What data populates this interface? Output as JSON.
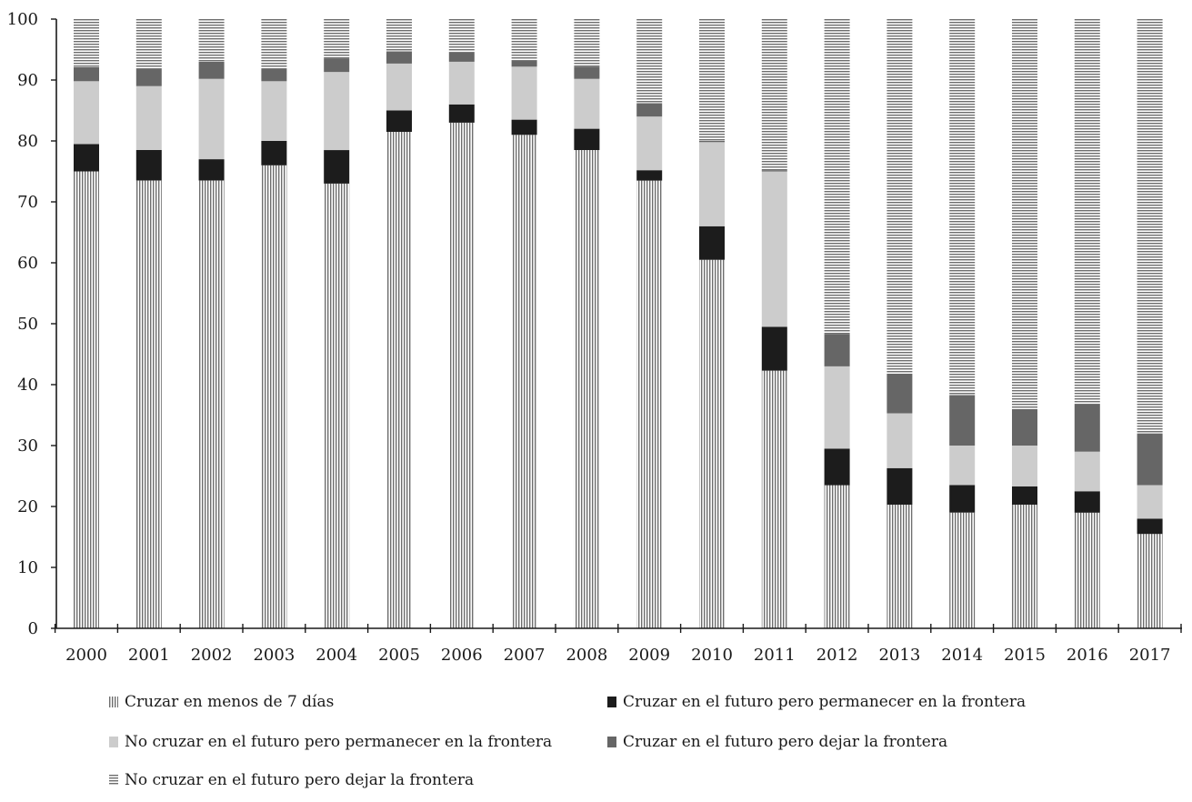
{
  "chart_data": {
    "type": "bar",
    "stacked": true,
    "title": "",
    "xlabel": "",
    "ylabel": "",
    "ylim": [
      0,
      100
    ],
    "yticks": [
      0,
      10,
      20,
      30,
      40,
      50,
      60,
      70,
      80,
      90,
      100
    ],
    "categories": [
      "2000",
      "2001",
      "2002",
      "2003",
      "2004",
      "2005",
      "2006",
      "2007",
      "2008",
      "2009",
      "2010",
      "2011",
      "2012",
      "2013",
      "2014",
      "2015",
      "2016",
      "2017"
    ],
    "series": [
      {
        "name": "Cruzar en menos de 7 días",
        "pattern": "vertical-lines",
        "color": "#6e6e6e",
        "values": [
          75,
          73.5,
          73.5,
          76,
          73,
          81.5,
          83,
          81,
          78.5,
          73.5,
          60.5,
          42.3,
          23.5,
          20.3,
          19,
          20.3,
          19,
          15.5
        ]
      },
      {
        "name": "Cruzar en el futuro pero permanecer en la frontera",
        "pattern": "solid",
        "color": "#1c1c1c",
        "values": [
          4.5,
          5,
          3.5,
          4,
          5.5,
          3.5,
          3,
          2.5,
          3.5,
          1.7,
          5.5,
          7.2,
          6,
          6,
          4.5,
          3,
          3.5,
          2.5
        ]
      },
      {
        "name": "No cruzar en el futuro pero permanecer en la frontera",
        "pattern": "solid",
        "color": "#cccccc",
        "values": [
          10.3,
          10.5,
          13.2,
          9.8,
          12.8,
          7.7,
          7,
          8.7,
          8.2,
          8.8,
          13.8,
          25.5,
          13.5,
          9,
          6.5,
          6.7,
          6.5,
          5.5
        ]
      },
      {
        "name": "Cruzar en el futuro pero dejar la frontera",
        "pattern": "solid",
        "color": "#666666",
        "values": [
          2.3,
          2.8,
          2.8,
          2,
          2.2,
          2,
          1.5,
          1,
          2,
          2.2,
          0.2,
          0.2,
          5.3,
          6.5,
          8.3,
          6,
          7.8,
          8.5
        ]
      },
      {
        "name": "No cruzar en el futuro pero dejar la frontera",
        "pattern": "horizontal-lines",
        "color": "#6e6e6e",
        "values": [
          7.9,
          8.2,
          7,
          8.2,
          6.5,
          5.3,
          5.5,
          6.8,
          7.8,
          13.8,
          20,
          24.8,
          51.7,
          58.2,
          61.7,
          64,
          63.2,
          68
        ]
      }
    ],
    "legend_position": "bottom"
  }
}
